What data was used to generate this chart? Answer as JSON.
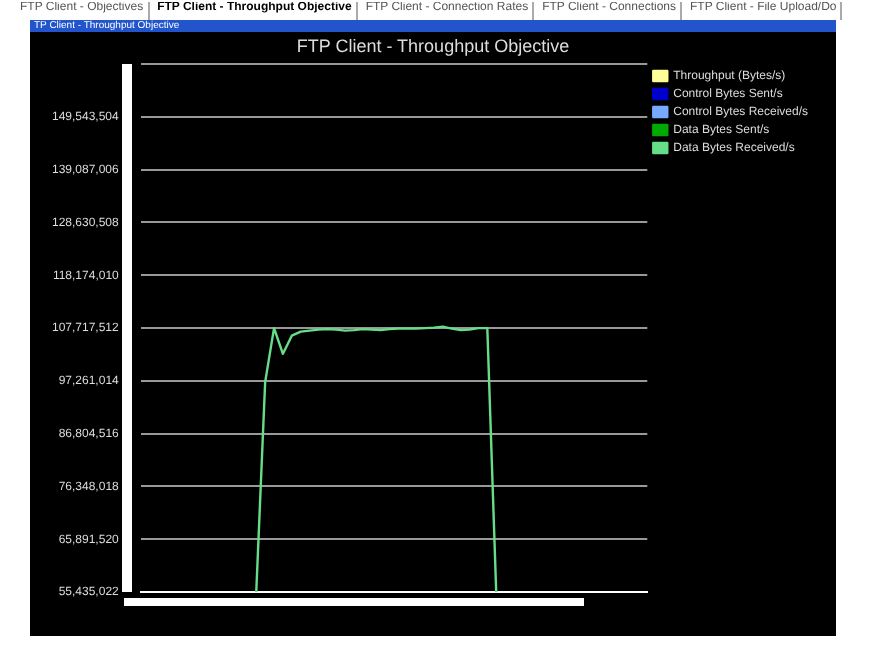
{
  "chart_data": {
    "type": "line",
    "title": "FTP Client - Throughput Objective",
    "annotations": [
      "FTP Client - Objectives",
      "FTP Client - Throughput Objective",
      "FTP Client - Connection Rates",
      "FTP Client - Connections",
      "FTP Client - File Upload/Do",
      "TP Client - Throughput Objective"
    ],
    "categories": [
      null,
      null,
      null,
      null,
      null,
      null,
      null,
      null,
      null,
      null,
      null,
      null,
      null,
      null,
      null,
      null,
      null,
      null,
      null,
      null,
      null,
      null,
      null,
      null,
      null,
      null,
      null,
      null,
      null,
      null,
      null,
      null,
      null,
      null,
      null,
      null,
      null,
      null,
      null,
      null,
      null,
      null,
      null,
      null,
      null,
      null,
      null,
      null,
      null,
      null,
      null,
      null,
      null,
      null,
      null,
      null,
      null,
      null
    ],
    "series": [
      {
        "name": "Throughput (Bytes/s)",
        "color": "#ffff99",
        "values": [
          null,
          null,
          null,
          null,
          null,
          null,
          null,
          null,
          null,
          null,
          null,
          null,
          null,
          null,
          null,
          null,
          null,
          null,
          null,
          null,
          null,
          null,
          null,
          null,
          null,
          null,
          null,
          null,
          null,
          null,
          null,
          null,
          null,
          null,
          null,
          null,
          null,
          null,
          null,
          null,
          null,
          null,
          null,
          null,
          null,
          null,
          null,
          null,
          null,
          null,
          null,
          null,
          null,
          null,
          null,
          null,
          null,
          null
        ]
      },
      {
        "name": "Control Bytes Sent/s",
        "color": "#0000cc",
        "values": [
          null,
          null,
          null,
          null,
          null,
          null,
          null,
          null,
          null,
          null,
          null,
          null,
          null,
          null,
          null,
          null,
          null,
          null,
          null,
          null,
          null,
          null,
          null,
          null,
          null,
          null,
          null,
          null,
          null,
          null,
          null,
          null,
          null,
          null,
          null,
          null,
          null,
          null,
          null,
          null,
          null,
          null,
          null,
          null,
          null,
          null,
          null,
          null,
          null,
          null,
          null,
          null,
          null,
          null,
          null,
          null,
          null,
          null
        ]
      },
      {
        "name": "Control Bytes Received/s",
        "color": "#77aaff",
        "values": [
          null,
          null,
          null,
          null,
          null,
          null,
          null,
          null,
          null,
          null,
          null,
          null,
          null,
          null,
          null,
          null,
          null,
          null,
          null,
          null,
          null,
          null,
          null,
          null,
          null,
          null,
          null,
          null,
          null,
          null,
          null,
          null,
          null,
          null,
          null,
          null,
          null,
          null,
          null,
          null,
          null,
          null,
          null,
          null,
          null,
          null,
          null,
          null,
          null,
          null,
          null,
          null,
          null,
          null,
          null,
          null,
          null,
          null
        ]
      },
      {
        "name": "Data Bytes Sent/s",
        "color": "#00aa00",
        "values": [
          null,
          null,
          null,
          null,
          null,
          null,
          null,
          null,
          null,
          null,
          null,
          null,
          null,
          null,
          null,
          null,
          null,
          null,
          null,
          null,
          null,
          null,
          null,
          null,
          null,
          null,
          null,
          null,
          null,
          null,
          null,
          null,
          null,
          null,
          null,
          null,
          null,
          null,
          null,
          null,
          null,
          null,
          null,
          null,
          null,
          null,
          null,
          null,
          null,
          null,
          null,
          null,
          null,
          null,
          null,
          null,
          null,
          null
        ]
      },
      {
        "name": "Data Bytes Received/s",
        "color": "#66dd88",
        "values": [
          null,
          null,
          null,
          null,
          null,
          null,
          null,
          null,
          null,
          null,
          null,
          null,
          null,
          55435022,
          97000000,
          107700000,
          102600000,
          106200000,
          107000000,
          107200000,
          107400000,
          107500000,
          107400000,
          107200000,
          107300000,
          107500000,
          107400000,
          107300000,
          107500000,
          107600000,
          107600000,
          107600000,
          107700000,
          107800000,
          108000000,
          107600000,
          107300000,
          107400000,
          107700000,
          107700000,
          55435022,
          null,
          null,
          null,
          null,
          null,
          null,
          null,
          null,
          null,
          null,
          null,
          null,
          null,
          null,
          null,
          null,
          null
        ]
      }
    ],
    "ylim": [
      55435022,
      160000002
    ],
    "yticks": [
      {
        "value": 55435022,
        "label": "55,435,022"
      },
      {
        "value": 65891520,
        "label": "65,891,520"
      },
      {
        "value": 76348018,
        "label": "76,348,018"
      },
      {
        "value": 86804516,
        "label": "86,804,516"
      },
      {
        "value": 97261014,
        "label": "97,261,014"
      },
      {
        "value": 107717512,
        "label": "107,717,512"
      },
      {
        "value": 118174010,
        "label": "118,174,010"
      },
      {
        "value": 128630508,
        "label": "128,630,508"
      },
      {
        "value": 139087006,
        "label": "139,087,006"
      },
      {
        "value": 149543504,
        "label": "149,543,504"
      },
      {
        "value": 160000002,
        "label": null
      }
    ],
    "grid": "y",
    "legend": "right",
    "marker": "none",
    "line_style": "solid",
    "tick_labels": "y"
  }
}
